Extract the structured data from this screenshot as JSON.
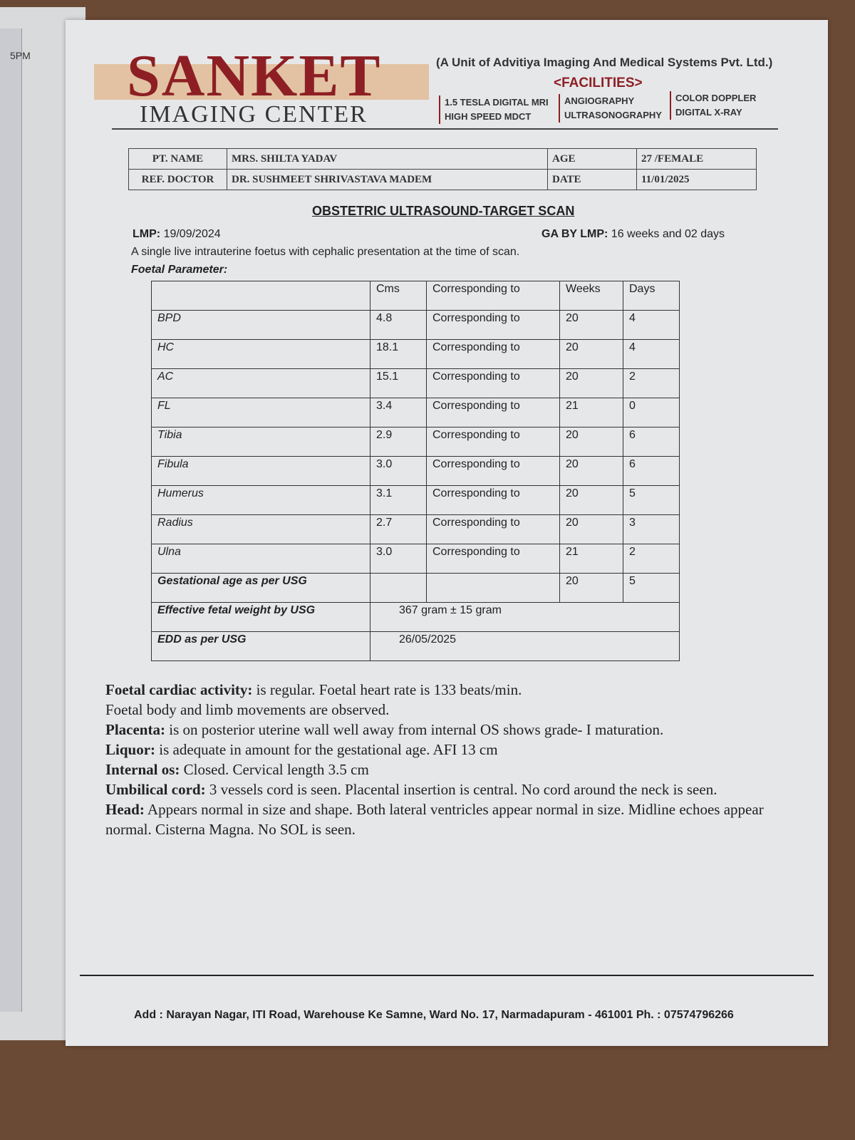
{
  "status_bar": {
    "time_fragment": "5PM"
  },
  "header": {
    "logo": "SANKET",
    "logo_sub": "IMAGING CENTER",
    "unit": "(A Unit of Advitiya Imaging And Medical Systems Pvt. Ltd.)",
    "facilities_title": "<FACILITIES>",
    "facilities": [
      [
        "1.5 TESLA DIGITAL MRI",
        "HIGH SPEED MDCT"
      ],
      [
        "ANGIOGRAPHY",
        "ULTRASONOGRAPHY"
      ],
      [
        "COLOR DOPPLER",
        "DIGITAL X-RAY"
      ]
    ]
  },
  "patient": {
    "name_label": "PT. NAME",
    "name": "MRS. SHILTA YADAV",
    "age_label": "AGE",
    "age": "27 /FEMALE",
    "ref_label": "REF. DOCTOR",
    "ref": "DR. SUSHMEET SHRIVASTAVA MADEM",
    "date_label": "DATE",
    "date": "11/01/2025"
  },
  "report": {
    "title": "OBSTETRIC ULTRASOUND-TARGET SCAN",
    "lmp_label": "LMP:",
    "lmp": "19/09/2024",
    "ga_label": "GA BY LMP:",
    "ga": "16 weeks and 02 days",
    "summary": "A single live intrauterine foetus with cephalic presentation at the time of scan.",
    "param_label": "Foetal Parameter:"
  },
  "table": {
    "headers": [
      "",
      "Cms",
      "Corresponding to",
      "Weeks",
      "Days"
    ],
    "rows": [
      [
        "BPD",
        "4.8",
        "Corresponding to",
        "20",
        "4"
      ],
      [
        "HC",
        "18.1",
        "Corresponding to",
        "20",
        "4"
      ],
      [
        "AC",
        "15.1",
        "Corresponding to",
        "20",
        "2"
      ],
      [
        "FL",
        "3.4",
        "Corresponding to",
        "21",
        "0"
      ],
      [
        "Tibia",
        "2.9",
        "Corresponding to",
        "20",
        "6"
      ],
      [
        "Fibula",
        "3.0",
        "Corresponding to",
        "20",
        "6"
      ],
      [
        "Humerus",
        "3.1",
        "Corresponding to",
        "20",
        "5"
      ],
      [
        "Radius",
        "2.7",
        "Corresponding to",
        "20",
        "3"
      ],
      [
        "Ulna",
        "3.0",
        "Corresponding to",
        "21",
        "2"
      ]
    ],
    "ga_usg_label": "Gestational age as per USG",
    "ga_usg_weeks": "20",
    "ga_usg_days": "5",
    "efw_label": "Effective fetal weight by USG",
    "efw": "367 gram ± 15  gram",
    "edd_label": "EDD as per USG",
    "edd": "26/05/2025"
  },
  "findings": [
    {
      "label": "Foetal cardiac activity:",
      "text": " is regular. Foetal heart rate is 133 beats/min."
    },
    {
      "label": "",
      "text": "Foetal body and limb movements are observed."
    },
    {
      "label": "Placenta:",
      "text": " is on posterior uterine wall well away from internal OS shows grade- I maturation."
    },
    {
      "label": "Liquor:",
      "text": " is adequate in amount for the gestational age. AFI 13 cm"
    },
    {
      "label": "Internal os:",
      "text": " Closed. Cervical length 3.5 cm"
    },
    {
      "label": "Umbilical cord:",
      "text": " 3 vessels cord is seen. Placental insertion is central. No cord around the neck is seen."
    },
    {
      "label": "Head:",
      "text": " Appears normal in size and shape. Both lateral ventricles appear normal in size. Midline echoes appear normal. Cisterna Magna. No SOL is seen."
    }
  ],
  "footer": {
    "address": "Add : Narayan Nagar, ITI Road, Warehouse Ke Samne, Ward No. 17, Narmadapuram - 461001 Ph. : 07574796266"
  }
}
